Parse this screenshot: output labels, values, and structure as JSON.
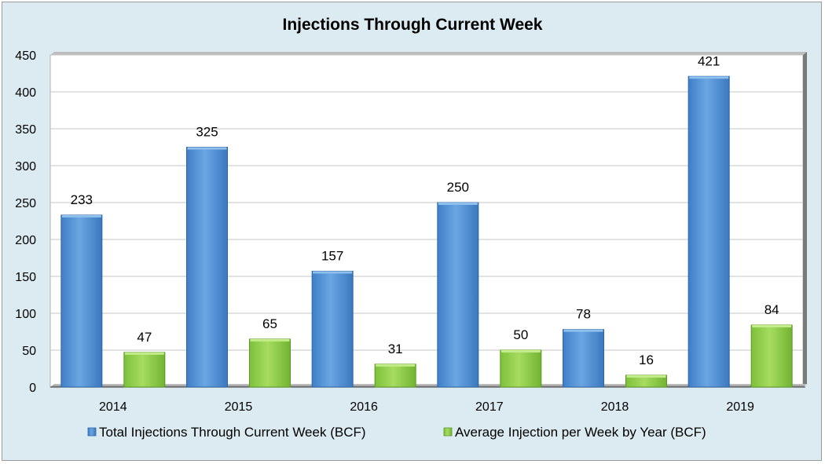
{
  "chart_data": {
    "type": "bar",
    "title": "Injections Through Current Week",
    "categories": [
      "2014",
      "2015",
      "2016",
      "2017",
      "2018",
      "2019"
    ],
    "series": [
      {
        "name": "Total Injections Through Current Week (BCF)",
        "values": [
          233,
          325,
          157,
          250,
          78,
          421
        ],
        "color": "#5b9bd5"
      },
      {
        "name": "Average Injection per Week by Year (BCF)",
        "values": [
          47,
          65,
          31,
          50,
          16,
          84
        ],
        "color": "#92d050"
      }
    ],
    "ylim": [
      0,
      450
    ],
    "yticks": [
      0,
      50,
      100,
      150,
      200,
      250,
      300,
      350,
      400,
      450
    ],
    "grid": true,
    "legend": "bottom",
    "background": "#dcebf1",
    "plot_background": "#ffffff"
  }
}
